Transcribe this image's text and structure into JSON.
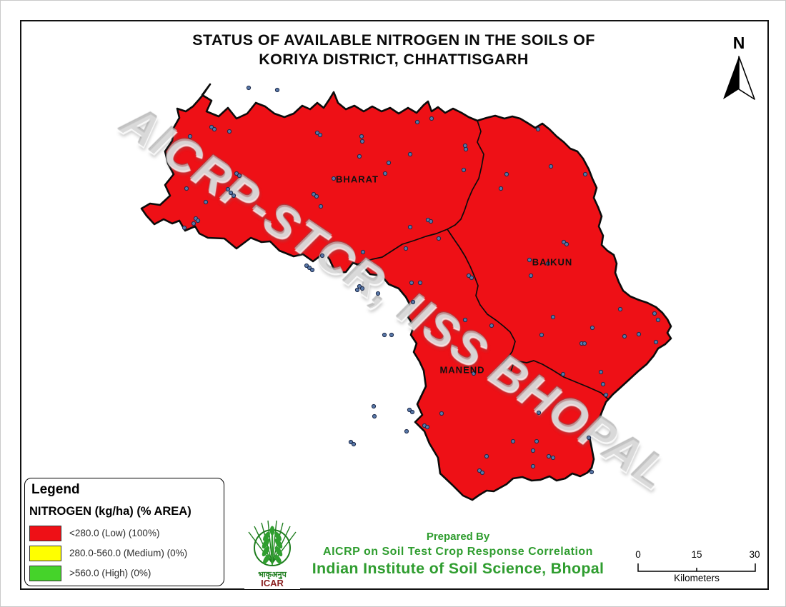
{
  "title": {
    "line1": "STATUS OF AVAILABLE NITROGEN IN THE SOILS OF",
    "line2": "KORIYA  DISTRICT, CHHATTISGARH"
  },
  "north_indicator": {
    "label": "N"
  },
  "map": {
    "watermark": "AICRP-STCR, IISS BHOPAL",
    "fill_color": "#ee1016",
    "boundary_color": "#0b0b0b",
    "sample_point_fill": "#5878a8",
    "sample_point_stroke": "#1d2a4a",
    "region_labels": [
      {
        "text": "BHARAT"
      },
      {
        "text": "BAIKUN"
      },
      {
        "text": "MANEND"
      }
    ],
    "sample_points": [
      [
        347,
        122
      ],
      [
        387,
        125
      ],
      [
        295,
        177
      ],
      [
        299,
        180
      ],
      [
        320,
        183
      ],
      [
        265,
        190
      ],
      [
        443,
        185
      ],
      [
        447,
        188
      ],
      [
        505,
        190
      ],
      [
        506,
        197
      ],
      [
        502,
        218
      ],
      [
        583,
        170
      ],
      [
        573,
        215
      ],
      [
        543,
        227
      ],
      [
        538,
        242
      ],
      [
        330,
        242
      ],
      [
        334,
        245
      ],
      [
        260,
        263
      ],
      [
        273,
        305
      ],
      [
        276,
        308
      ],
      [
        270,
        312
      ],
      [
        257,
        318
      ],
      [
        438,
        271
      ],
      [
        442,
        274
      ],
      [
        448,
        288
      ],
      [
        598,
        307
      ],
      [
        602,
        309
      ],
      [
        613,
        333
      ],
      [
        567,
        347
      ],
      [
        507,
        352
      ],
      [
        450,
        357
      ],
      [
        318,
        264
      ],
      [
        322,
        269
      ],
      [
        326,
        273
      ],
      [
        287,
        282
      ],
      [
        466,
        249
      ],
      [
        428,
        371
      ],
      [
        432,
        374
      ],
      [
        436,
        377
      ],
      [
        502,
        400
      ],
      [
        506,
        403
      ],
      [
        499,
        405
      ],
      [
        528,
        410
      ],
      [
        577,
        422
      ],
      [
        587,
        395
      ],
      [
        547,
        468
      ],
      [
        537,
        468
      ],
      [
        603,
        165
      ],
      [
        752,
        180
      ],
      [
        650,
        203
      ],
      [
        651,
        208
      ],
      [
        648,
        237
      ],
      [
        708,
        243
      ],
      [
        700,
        263
      ],
      [
        770,
        232
      ],
      [
        818,
        243
      ],
      [
        573,
        317
      ],
      [
        788,
        338
      ],
      [
        792,
        341
      ],
      [
        740,
        363
      ],
      [
        766,
        368
      ],
      [
        742,
        385
      ],
      [
        655,
        385
      ],
      [
        659,
        388
      ],
      [
        575,
        395
      ],
      [
        773,
        443
      ],
      [
        867,
        432
      ],
      [
        915,
        438
      ],
      [
        920,
        447
      ],
      [
        873,
        470
      ],
      [
        893,
        467
      ],
      [
        828,
        458
      ],
      [
        813,
        480
      ],
      [
        650,
        447
      ],
      [
        687,
        455
      ],
      [
        757,
        468
      ],
      [
        817,
        480
      ],
      [
        917,
        478
      ],
      [
        787,
        523
      ],
      [
        840,
        520
      ],
      [
        843,
        537
      ],
      [
        847,
        552
      ],
      [
        753,
        577
      ],
      [
        717,
        617
      ],
      [
        750,
        617
      ],
      [
        745,
        630
      ],
      [
        767,
        638
      ],
      [
        773,
        640
      ],
      [
        745,
        652
      ],
      [
        680,
        638
      ],
      [
        670,
        658
      ],
      [
        674,
        661
      ],
      [
        823,
        612
      ],
      [
        827,
        660
      ],
      [
        572,
        573
      ],
      [
        576,
        576
      ],
      [
        568,
        603
      ],
      [
        523,
        582
      ],
      [
        522,
        568
      ],
      [
        593,
        595
      ],
      [
        597,
        597
      ],
      [
        617,
        578
      ],
      [
        490,
        618
      ],
      [
        494,
        621
      ],
      [
        662,
        522
      ]
    ]
  },
  "legend": {
    "title": "Legend",
    "subtitle": "NITROGEN (kg/ha) (% AREA)",
    "items": [
      {
        "color": "#ee1016",
        "label": "<280.0 (Low) (100%)"
      },
      {
        "color": "#ffff00",
        "label": "280.0-560.0 (Medium) (0%)"
      },
      {
        "color": "#45d32a",
        "label": ">560.0 (High) (0%)"
      }
    ]
  },
  "credits": {
    "prepared_by": "Prepared By",
    "organization": "AICRP on Soil Test Crop Response Correlation",
    "institute": "Indian Institute of Soil Science, Bhopal",
    "text_color": "#2f9d2f",
    "logo": {
      "hindi": "भाकृअनुप",
      "acronym": "ICAR"
    }
  },
  "scale_bar": {
    "ticks": [
      "0",
      "15",
      "30"
    ],
    "unit": "Kilometers"
  }
}
